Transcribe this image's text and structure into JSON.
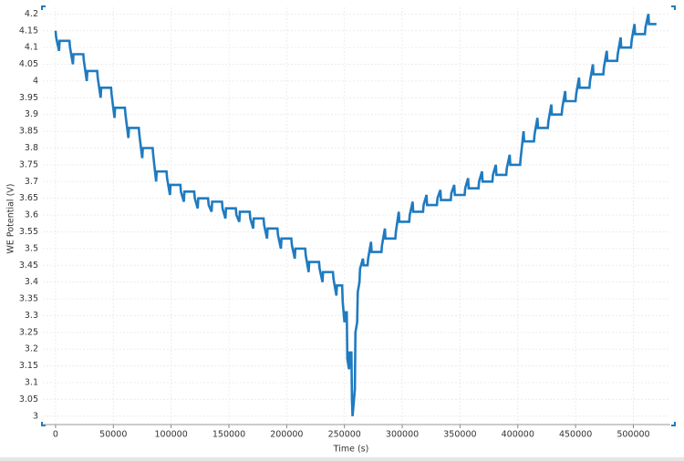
{
  "chart_data": {
    "type": "line",
    "xlabel": "Time (s)",
    "ylabel": "WE Potential (V)",
    "xlim": [
      -11000,
      532000
    ],
    "ylim": [
      2.975,
      4.22
    ],
    "xticks": [
      0,
      50000,
      100000,
      150000,
      200000,
      250000,
      300000,
      350000,
      400000,
      450000,
      500000
    ],
    "yticks": [
      3,
      3.05,
      3.1,
      3.15,
      3.2,
      3.25,
      3.3,
      3.35,
      3.4,
      3.45,
      3.5,
      3.55,
      3.6,
      3.65,
      3.7,
      3.75,
      3.8,
      3.85,
      3.9,
      3.95,
      4,
      4.05,
      4.1,
      4.15,
      4.2
    ],
    "grid": true,
    "series": [
      {
        "color": "#1f7bc0",
        "x": [
          0,
          500,
          3000,
          3500,
          12000,
          12500,
          15000,
          15500,
          24000,
          24500,
          27000,
          27500,
          36000,
          36500,
          39000,
          39500,
          48000,
          48500,
          51000,
          51500,
          60000,
          60500,
          63000,
          63500,
          72000,
          72500,
          75000,
          75500,
          84000,
          84500,
          87000,
          87500,
          96000,
          96500,
          99000,
          99500,
          108000,
          108500,
          111000,
          111500,
          120000,
          120500,
          123000,
          123500,
          132000,
          132500,
          135000,
          135500,
          144000,
          144500,
          147000,
          147500,
          156000,
          156500,
          159000,
          159500,
          168000,
          168500,
          171000,
          171500,
          180000,
          180500,
          183000,
          183500,
          192000,
          192500,
          195000,
          195500,
          204000,
          204500,
          207000,
          207500,
          216000,
          216500,
          219000,
          219500,
          228000,
          228500,
          231000,
          231500,
          240000,
          240500,
          243000,
          243500,
          248000,
          248500,
          250000,
          250500,
          252000,
          252500,
          254000,
          254500,
          256000,
          256500,
          257000,
          258500,
          259000,
          259500,
          261000,
          261500,
          263000,
          263500,
          266000,
          266500,
          270000,
          270500,
          273000,
          273500,
          282000,
          282500,
          285000,
          285500,
          294000,
          294500,
          297000,
          297500,
          306000,
          306500,
          309000,
          309500,
          318000,
          318500,
          321000,
          321500,
          330000,
          330500,
          333000,
          333500,
          342000,
          342500,
          345000,
          345500,
          354000,
          354500,
          357000,
          357500,
          366000,
          366500,
          369000,
          369500,
          378000,
          378500,
          381000,
          381500,
          390000,
          390500,
          393000,
          393500,
          402000,
          402500,
          405000,
          405500,
          414000,
          414500,
          417000,
          417500,
          426000,
          426500,
          429000,
          429500,
          438000,
          438500,
          441000,
          441500,
          450000,
          450500,
          453000,
          453500,
          462000,
          462500,
          465000,
          465500,
          474000,
          474500,
          477000,
          477500,
          486000,
          486500,
          489000,
          489500,
          498000,
          498500,
          501000,
          501500,
          510000,
          510500,
          513000,
          513500,
          520000
        ],
        "values": [
          4.15,
          4.13,
          4.09,
          4.12,
          4.12,
          4.1,
          4.05,
          4.08,
          4.08,
          4.06,
          4.0,
          4.03,
          4.03,
          4.01,
          3.95,
          3.98,
          3.98,
          3.96,
          3.89,
          3.92,
          3.92,
          3.9,
          3.83,
          3.86,
          3.86,
          3.84,
          3.77,
          3.8,
          3.8,
          3.78,
          3.7,
          3.73,
          3.73,
          3.71,
          3.66,
          3.69,
          3.69,
          3.67,
          3.64,
          3.67,
          3.67,
          3.65,
          3.62,
          3.65,
          3.65,
          3.63,
          3.61,
          3.64,
          3.64,
          3.62,
          3.59,
          3.62,
          3.62,
          3.6,
          3.58,
          3.61,
          3.61,
          3.59,
          3.56,
          3.59,
          3.59,
          3.57,
          3.53,
          3.56,
          3.56,
          3.54,
          3.5,
          3.53,
          3.53,
          3.51,
          3.47,
          3.5,
          3.5,
          3.48,
          3.43,
          3.46,
          3.46,
          3.44,
          3.4,
          3.43,
          3.43,
          3.41,
          3.36,
          3.39,
          3.39,
          3.34,
          3.28,
          3.31,
          3.31,
          3.17,
          3.14,
          3.19,
          3.19,
          3.05,
          3.0,
          3.06,
          3.08,
          3.25,
          3.28,
          3.37,
          3.4,
          3.44,
          3.47,
          3.45,
          3.45,
          3.47,
          3.52,
          3.49,
          3.49,
          3.51,
          3.56,
          3.53,
          3.53,
          3.55,
          3.61,
          3.58,
          3.58,
          3.6,
          3.64,
          3.61,
          3.61,
          3.63,
          3.66,
          3.63,
          3.63,
          3.65,
          3.675,
          3.645,
          3.645,
          3.665,
          3.69,
          3.66,
          3.66,
          3.68,
          3.71,
          3.68,
          3.68,
          3.7,
          3.73,
          3.7,
          3.7,
          3.72,
          3.75,
          3.72,
          3.72,
          3.74,
          3.78,
          3.75,
          3.75,
          3.77,
          3.85,
          3.82,
          3.82,
          3.84,
          3.89,
          3.86,
          3.86,
          3.88,
          3.93,
          3.9,
          3.9,
          3.92,
          3.97,
          3.94,
          3.94,
          3.96,
          4.01,
          3.98,
          3.98,
          4.0,
          4.05,
          4.02,
          4.02,
          4.04,
          4.09,
          4.06,
          4.06,
          4.08,
          4.13,
          4.1,
          4.1,
          4.12,
          4.17,
          4.14,
          4.14,
          4.16,
          4.2,
          4.17,
          4.17
        ]
      }
    ]
  }
}
